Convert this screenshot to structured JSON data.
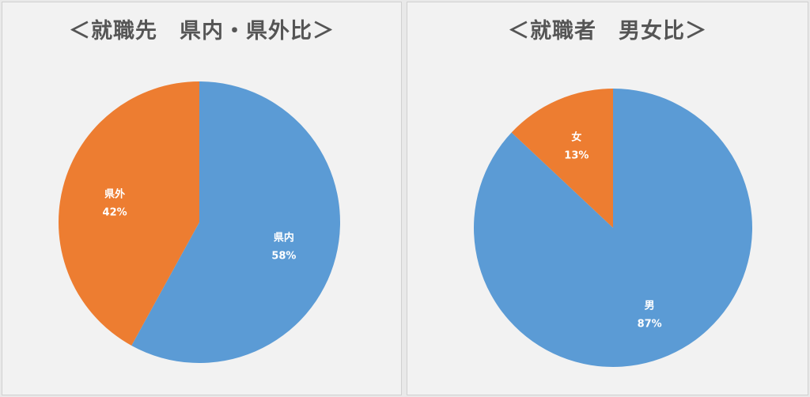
{
  "chart_data": [
    {
      "type": "pie",
      "title": "＜就職先　県内・県外比＞",
      "slices": [
        {
          "label": "県内",
          "value": 58,
          "display": "58%",
          "color": "#5b9bd5"
        },
        {
          "label": "県外",
          "value": 42,
          "display": "42%",
          "color": "#ed7d31"
        }
      ]
    },
    {
      "type": "pie",
      "title": "＜就職者　男女比＞",
      "slices": [
        {
          "label": "男",
          "value": 87,
          "display": "87%",
          "color": "#5b9bd5"
        },
        {
          "label": "女",
          "value": 13,
          "display": "13%",
          "color": "#ed7d31"
        }
      ]
    }
  ]
}
